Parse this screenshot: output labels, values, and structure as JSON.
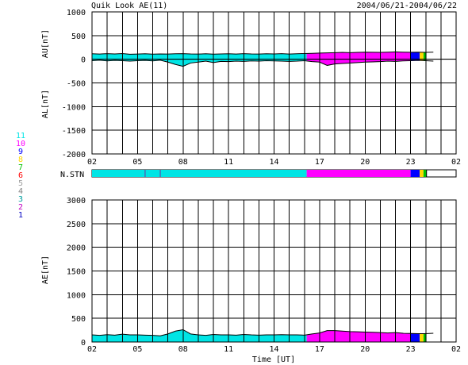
{
  "header": {
    "title": "Quik Look AE(11)",
    "date_range": "2004/06/21-2004/06/22"
  },
  "chart_data": [
    {
      "type": "area",
      "panel": "AU/AL",
      "ylabel_upper": "AU[nT]",
      "ylabel_lower": "AL[nT]",
      "ylim": [
        -2000,
        1000
      ],
      "yticks": [
        1000,
        500,
        0,
        -500,
        -1000,
        -1500,
        -2000
      ],
      "xticks": [
        "02",
        "05",
        "08",
        "11",
        "14",
        "17",
        "20",
        "23",
        "02"
      ],
      "grid": true,
      "x_hours": [
        0,
        0.5,
        1,
        1.5,
        2,
        2.5,
        3,
        3.5,
        4,
        4.5,
        5,
        5.5,
        6,
        6.5,
        7,
        7.5,
        8,
        8.5,
        9,
        9.5,
        10,
        10.5,
        11,
        11.5,
        12,
        12.5,
        13,
        13.5,
        14,
        14.5,
        15,
        15.5,
        16,
        16.5,
        17,
        17.5,
        18,
        18.5,
        19,
        19.5,
        20,
        20.5,
        21,
        21.5,
        22,
        22.5
      ],
      "series": [
        {
          "values": [
            115,
            110,
            118,
            112,
            120,
            105,
            110,
            115,
            108,
            112,
            110,
            115,
            118,
            112,
            110,
            115,
            108,
            112,
            115,
            110,
            118,
            112,
            110,
            115,
            112,
            118,
            110,
            115,
            120,
            125,
            130,
            135,
            140,
            145,
            140,
            145,
            150,
            148,
            145,
            150,
            155,
            150,
            148,
            150,
            145,
            150
          ]
        },
        {
          "values": [
            -30,
            -20,
            -35,
            -25,
            -30,
            -40,
            -30,
            -25,
            -35,
            -20,
            -60,
            -110,
            -150,
            -80,
            -60,
            -40,
            -70,
            -45,
            -50,
            -40,
            -45,
            -35,
            -40,
            -30,
            -35,
            -40,
            -45,
            -40,
            -30,
            -50,
            -60,
            -130,
            -100,
            -90,
            -80,
            -70,
            -60,
            -55,
            -50,
            -40,
            -45,
            -35,
            -30,
            -25,
            -30,
            -40
          ]
        }
      ]
    },
    {
      "type": "area",
      "panel": "AE",
      "ylabel": "AE[nT]",
      "xlabel": "Time [UT]",
      "ylim": [
        0,
        3000
      ],
      "yticks": [
        3000,
        2500,
        2000,
        1500,
        1000,
        500,
        0
      ],
      "xticks": [
        "02",
        "05",
        "08",
        "11",
        "14",
        "17",
        "20",
        "23",
        "02"
      ],
      "grid": true,
      "x_hours": [
        0,
        0.5,
        1,
        1.5,
        2,
        2.5,
        3,
        3.5,
        4,
        4.5,
        5,
        5.5,
        6,
        6.5,
        7,
        7.5,
        8,
        8.5,
        9,
        9.5,
        10,
        10.5,
        11,
        11.5,
        12,
        12.5,
        13,
        13.5,
        14,
        14.5,
        15,
        15.5,
        16,
        16.5,
        17,
        17.5,
        18,
        18.5,
        19,
        19.5,
        20,
        20.5,
        21,
        21.5,
        22,
        22.5
      ],
      "series": [
        {
          "values": [
            150,
            140,
            155,
            145,
            165,
            150,
            150,
            145,
            140,
            130,
            170,
            230,
            260,
            170,
            150,
            140,
            160,
            150,
            150,
            145,
            160,
            150,
            145,
            150,
            150,
            155,
            150,
            150,
            145,
            170,
            190,
            240,
            240,
            230,
            220,
            215,
            210,
            205,
            200,
            190,
            200,
            185,
            180,
            175,
            175,
            185
          ]
        }
      ]
    }
  ],
  "station_legend": {
    "label": "N.STN",
    "numbers": [
      "11",
      "10",
      "9",
      "8",
      "7",
      "6",
      "5",
      "4",
      "3",
      "2",
      "1"
    ],
    "colors": [
      "#00e5e5",
      "#ff00ff",
      "#0000ff",
      "#ffd700",
      "#00c000",
      "#ff0000",
      "#a0a0a0",
      "#808080",
      "#00a0a0",
      "#c000c0",
      "#0000c0"
    ],
    "segments": [
      {
        "stations": "11",
        "start_hour": 0,
        "end_hour": 14.15
      },
      {
        "stations": "10",
        "start_hour": 14.15,
        "end_hour": 21.0
      },
      {
        "stations": "9",
        "start_hour": 21.0,
        "end_hour": 21.6
      },
      {
        "stations": "8",
        "start_hour": 21.6,
        "end_hour": 21.85
      },
      {
        "stations": "7",
        "start_hour": 21.85,
        "end_hour": 22.05
      }
    ]
  }
}
